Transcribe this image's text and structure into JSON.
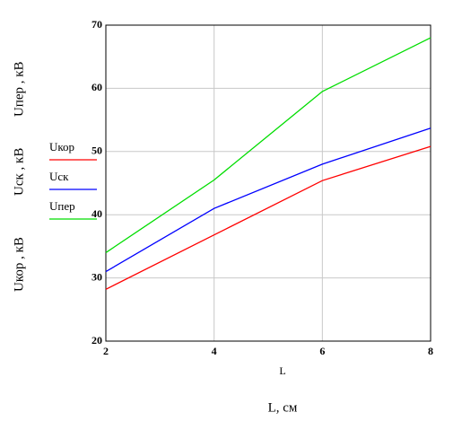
{
  "chart_data": {
    "type": "line",
    "y_labels": [
      "Uкор , кВ",
      "Uск , кВ",
      "Uпер , кВ"
    ],
    "x_labels": [
      "L",
      "L, см"
    ],
    "x": [
      2,
      4,
      6,
      8
    ],
    "series": [
      {
        "name": "Uкор",
        "color": "#ff0000",
        "values": [
          28.2,
          36.8,
          45.4,
          50.8
        ]
      },
      {
        "name": "Uск",
        "color": "#0000ff",
        "values": [
          31,
          41,
          48,
          53.7
        ]
      },
      {
        "name": "Uпер",
        "color": "#00dd00",
        "values": [
          34,
          45.5,
          59.5,
          68
        ]
      }
    ],
    "xlim": [
      2,
      8
    ],
    "xticks": [
      2,
      4,
      6,
      8
    ],
    "ylim": [
      20,
      70
    ],
    "yticks": [
      20,
      30,
      40,
      50,
      60,
      70
    ],
    "grid": true
  }
}
